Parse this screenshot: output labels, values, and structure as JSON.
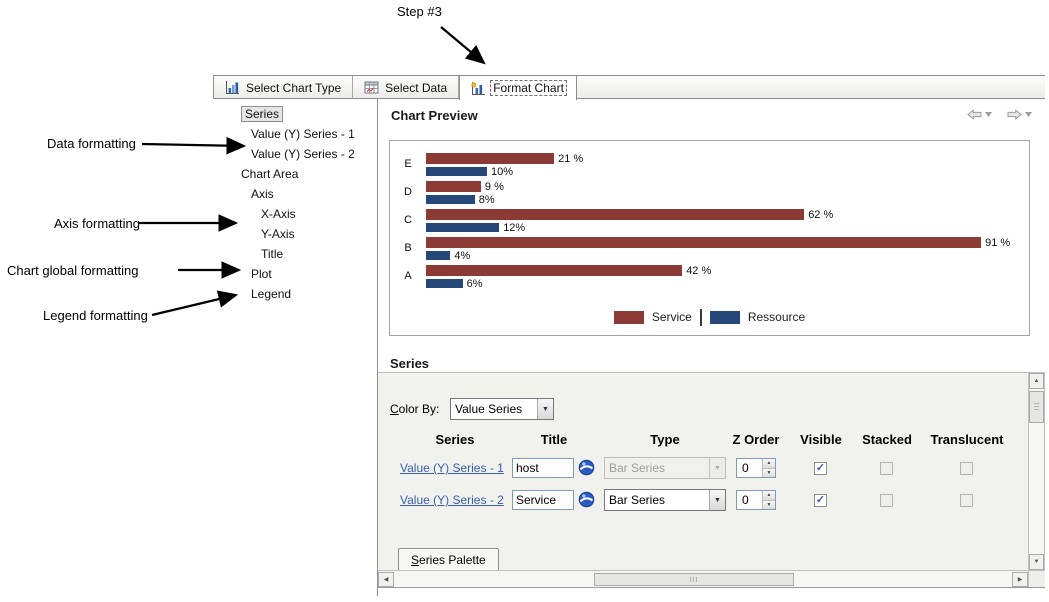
{
  "annotations": {
    "step": "Step #3",
    "data_formatting": "Data formatting",
    "axis_formatting": "Axis formatting",
    "chart_global_formatting": "Chart global formatting",
    "legend_formatting": "Legend formatting"
  },
  "tabs": [
    {
      "label": "Select Chart Type",
      "selected": false
    },
    {
      "label": "Select Data",
      "selected": false
    },
    {
      "label": "Format Chart",
      "selected": true
    }
  ],
  "tree": {
    "items": [
      {
        "label": "Series",
        "level": 0,
        "selected": true
      },
      {
        "label": "Value (Y) Series - 1",
        "level": 1,
        "selected": false
      },
      {
        "label": "Value (Y) Series - 2",
        "level": 1,
        "selected": false
      },
      {
        "label": "Chart Area",
        "level": 0,
        "selected": false
      },
      {
        "label": "Axis",
        "level": 1,
        "selected": false
      },
      {
        "label": "X-Axis",
        "level": 2,
        "selected": false
      },
      {
        "label": "Y-Axis",
        "level": 2,
        "selected": false
      },
      {
        "label": "Title",
        "level": 2,
        "selected": false
      },
      {
        "label": "Plot",
        "level": 1,
        "selected": false
      },
      {
        "label": "Legend",
        "level": 1,
        "selected": false
      }
    ]
  },
  "preview": {
    "title": "Chart Preview"
  },
  "chart_data": {
    "type": "bar",
    "orientation": "horizontal",
    "title": "",
    "categories": [
      "E",
      "D",
      "C",
      "B",
      "A"
    ],
    "series": [
      {
        "name": "Service",
        "color": "#8c3a36",
        "values": [
          21,
          9,
          62,
          91,
          42
        ],
        "labels": [
          "21 %",
          "9 %",
          "62 %",
          "91 %",
          "42 %"
        ]
      },
      {
        "name": "Ressource",
        "color": "#26477a",
        "values": [
          10,
          8,
          12,
          4,
          6
        ],
        "labels": [
          "10%",
          "8%",
          "12%",
          "4%",
          "6%"
        ]
      }
    ],
    "xlim": [
      0,
      100
    ],
    "value_unit": "%",
    "grid": false,
    "legend_position": "bottom"
  },
  "series_section": {
    "title": "Series",
    "color_by": {
      "mnemonic": "C",
      "label_rest": "olor By:",
      "value": "Value Series"
    },
    "table": {
      "headers": [
        "Series",
        "Title",
        "Type",
        "Z Order",
        "Visible",
        "Stacked",
        "Translucent"
      ],
      "rows": [
        {
          "series": "Value (Y) Series - 1",
          "title": "host",
          "type": "Bar Series",
          "type_enabled": false,
          "z_order": "0",
          "visible": true,
          "stacked": false,
          "translucent": false
        },
        {
          "series": "Value (Y) Series - 2",
          "title": "Service",
          "type": "Bar Series",
          "type_enabled": true,
          "z_order": "0",
          "visible": true,
          "stacked": false,
          "translucent": false
        }
      ]
    },
    "palette_tab": {
      "mnemonic": "S",
      "label_rest": "eries Palette"
    }
  },
  "icons": {
    "tab_select_chart_type": "bar-chart-icon",
    "tab_select_data": "data-table-icon",
    "tab_format_chart": "format-chart-icon",
    "preview_nav": [
      "back-arrow-icon",
      "forward-arrow-icon"
    ],
    "series_title_button": "globe-editor-icon",
    "dropdowns": "chevron-down-icon"
  }
}
